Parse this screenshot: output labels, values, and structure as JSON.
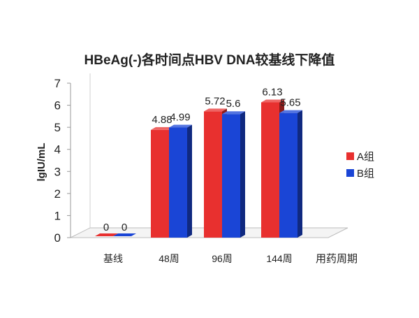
{
  "chart_data": {
    "type": "bar",
    "title": "HBeAg(-)各时间点HBV DNA较基线下降值",
    "xlabel": "用药周期",
    "ylabel": "lgIU/mL",
    "categories": [
      "基线",
      "48周",
      "96周",
      "144周"
    ],
    "series": [
      {
        "name": "A组",
        "values": [
          0,
          4.88,
          5.72,
          6.13
        ],
        "labels": [
          "0",
          "4.88",
          "5.72",
          "6.13"
        ]
      },
      {
        "name": "B组",
        "values": [
          0,
          4.99,
          5.6,
          5.65
        ],
        "labels": [
          "0",
          "4.99",
          "5.6",
          "5.65"
        ]
      }
    ],
    "ylim": [
      0,
      7
    ],
    "yticks": [
      0,
      1,
      2,
      3,
      4,
      5,
      6,
      7
    ],
    "grid": false,
    "legend": "right",
    "colors": {
      "A": "#e8302f",
      "B": "#1a45d6"
    }
  }
}
